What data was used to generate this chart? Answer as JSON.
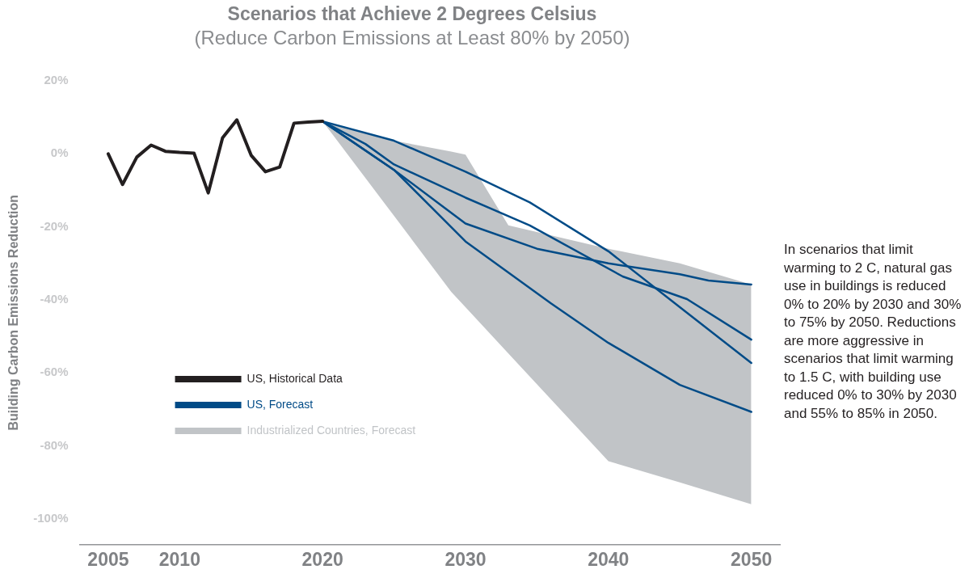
{
  "chart_data": {
    "type": "line",
    "title": "Scenarios that Achieve 2 Degrees Celsius",
    "subtitle": "(Reduce Carbon Emissions at Least 80% by 2050)",
    "ylabel": "Building Carbon Emissions Reduction",
    "xlim": [
      2003,
      2052
    ],
    "xticks": [
      2005,
      2010,
      2020,
      2030,
      2040,
      2050
    ],
    "ylim": [
      -107,
      20
    ],
    "yticks": [
      {
        "value": 20,
        "label": "20%"
      },
      {
        "value": 0,
        "label": "0%"
      },
      {
        "value": -20,
        "label": "-20%"
      },
      {
        "value": -40,
        "label": "-40%"
      },
      {
        "value": -60,
        "label": "-60%"
      },
      {
        "value": -80,
        "label": "-80%"
      },
      {
        "value": -100,
        "label": "-100%"
      }
    ],
    "grid": false,
    "legend": "left",
    "marker": "none",
    "line_style": "solid",
    "series": [
      {
        "type": "area",
        "name": "Industrialized Countries, Forecast",
        "color": "#c1c4c7",
        "x": [
          2020,
          2025,
          2029,
          2030,
          2033,
          2040,
          2045,
          2050
        ],
        "values": [
          null,
          null,
          null,
          null,
          null,
          null,
          null,
          null
        ],
        "upper": [
          8.9,
          3.6,
          0.6,
          -0.2,
          -19.6,
          -26,
          -30,
          -35.8
        ],
        "lower": [
          8.9,
          -17,
          -37.8,
          -42,
          -54.7,
          -84.2,
          -90,
          -96
        ]
      },
      {
        "type": "line",
        "name": "US, Historical Data",
        "color": "#231f20",
        "x": [
          2005,
          2006,
          2007,
          2008,
          2009,
          2010,
          2011,
          2012,
          2013,
          2014,
          2015,
          2016,
          2017,
          2018,
          2019,
          2020
        ],
        "values": [
          0,
          -8.4,
          -0.9,
          2.4,
          0.7,
          0.4,
          0.2,
          -10.7,
          4.4,
          9.3,
          -0.4,
          -4.9,
          -3.6,
          8.4,
          8.7,
          8.9
        ]
      },
      {
        "type": "line",
        "name": "US, Forecast",
        "color": "#004b87",
        "x": [
          2020,
          2025,
          2030,
          2034.5,
          2040,
          2045,
          2050
        ],
        "values": [
          8.9,
          3.6,
          -4.9,
          -13.3,
          -26.7,
          -42,
          -57.3
        ]
      },
      {
        "type": "line",
        "color": "#004b87",
        "x": [
          2020,
          2023,
          2025,
          2030,
          2034.5,
          2041,
          2045.5,
          2050
        ],
        "values": [
          8.9,
          2.7,
          -2.9,
          -12,
          -19.6,
          -33.6,
          -39.8,
          -50.9
        ]
      },
      {
        "type": "line",
        "color": "#004b87",
        "x": [
          2020,
          2025,
          2030,
          2035,
          2040,
          2045,
          2047,
          2050
        ],
        "values": [
          8.9,
          -4.4,
          -19.1,
          -26,
          -30,
          -33,
          -34.7,
          -35.8
        ]
      },
      {
        "type": "line",
        "color": "#004b87",
        "x": [
          2020,
          2025,
          2030,
          2036,
          2040,
          2045,
          2050
        ],
        "values": [
          8.9,
          -4.4,
          -24,
          -41,
          -51.8,
          -63.3,
          -70.7
        ]
      }
    ],
    "annotations": [
      "In scenarios that limit warming to 2 C, natural gas use in buildings is reduced 0% to 20% by 2030 and 30% to 75% by 2050. Reductions are more aggressive in scenarios that limit warming to 1.5 C, with building use reduced 0% to 30% by 2030 and 55% to 85% in 2050."
    ]
  }
}
